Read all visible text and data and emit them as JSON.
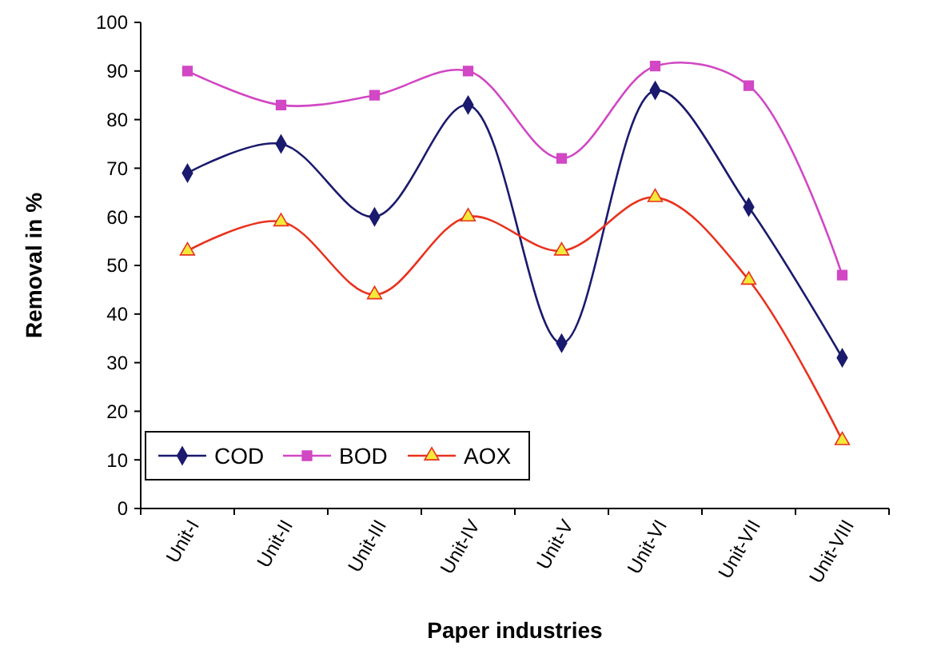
{
  "chart_data": {
    "type": "line",
    "xlabel": "Paper industries",
    "ylabel": "Removal in %",
    "categories": [
      "Unit-I",
      "Unit-II",
      "Unit-III",
      "Unit-IV",
      "Unit-V",
      "Unit-VI",
      "Unit-VII",
      "Unit-VIII"
    ],
    "series": [
      {
        "name": "COD",
        "color": "#1a1a6e",
        "marker": "diamond",
        "values": [
          69,
          75,
          60,
          83,
          34,
          86,
          62,
          31
        ]
      },
      {
        "name": "BOD",
        "color": "#d147c4",
        "marker": "square",
        "values": [
          90,
          83,
          85,
          90,
          72,
          91,
          87,
          48
        ]
      },
      {
        "name": "AOX",
        "color": "#e8321e",
        "marker": "triangle",
        "values": [
          53,
          59,
          44,
          60,
          53,
          64,
          47,
          14
        ]
      }
    ],
    "ylim": [
      0,
      100
    ],
    "yticks": [
      0,
      10,
      20,
      30,
      40,
      50,
      60,
      70,
      80,
      90,
      100
    ],
    "grid": false,
    "legend": "bottom left"
  }
}
